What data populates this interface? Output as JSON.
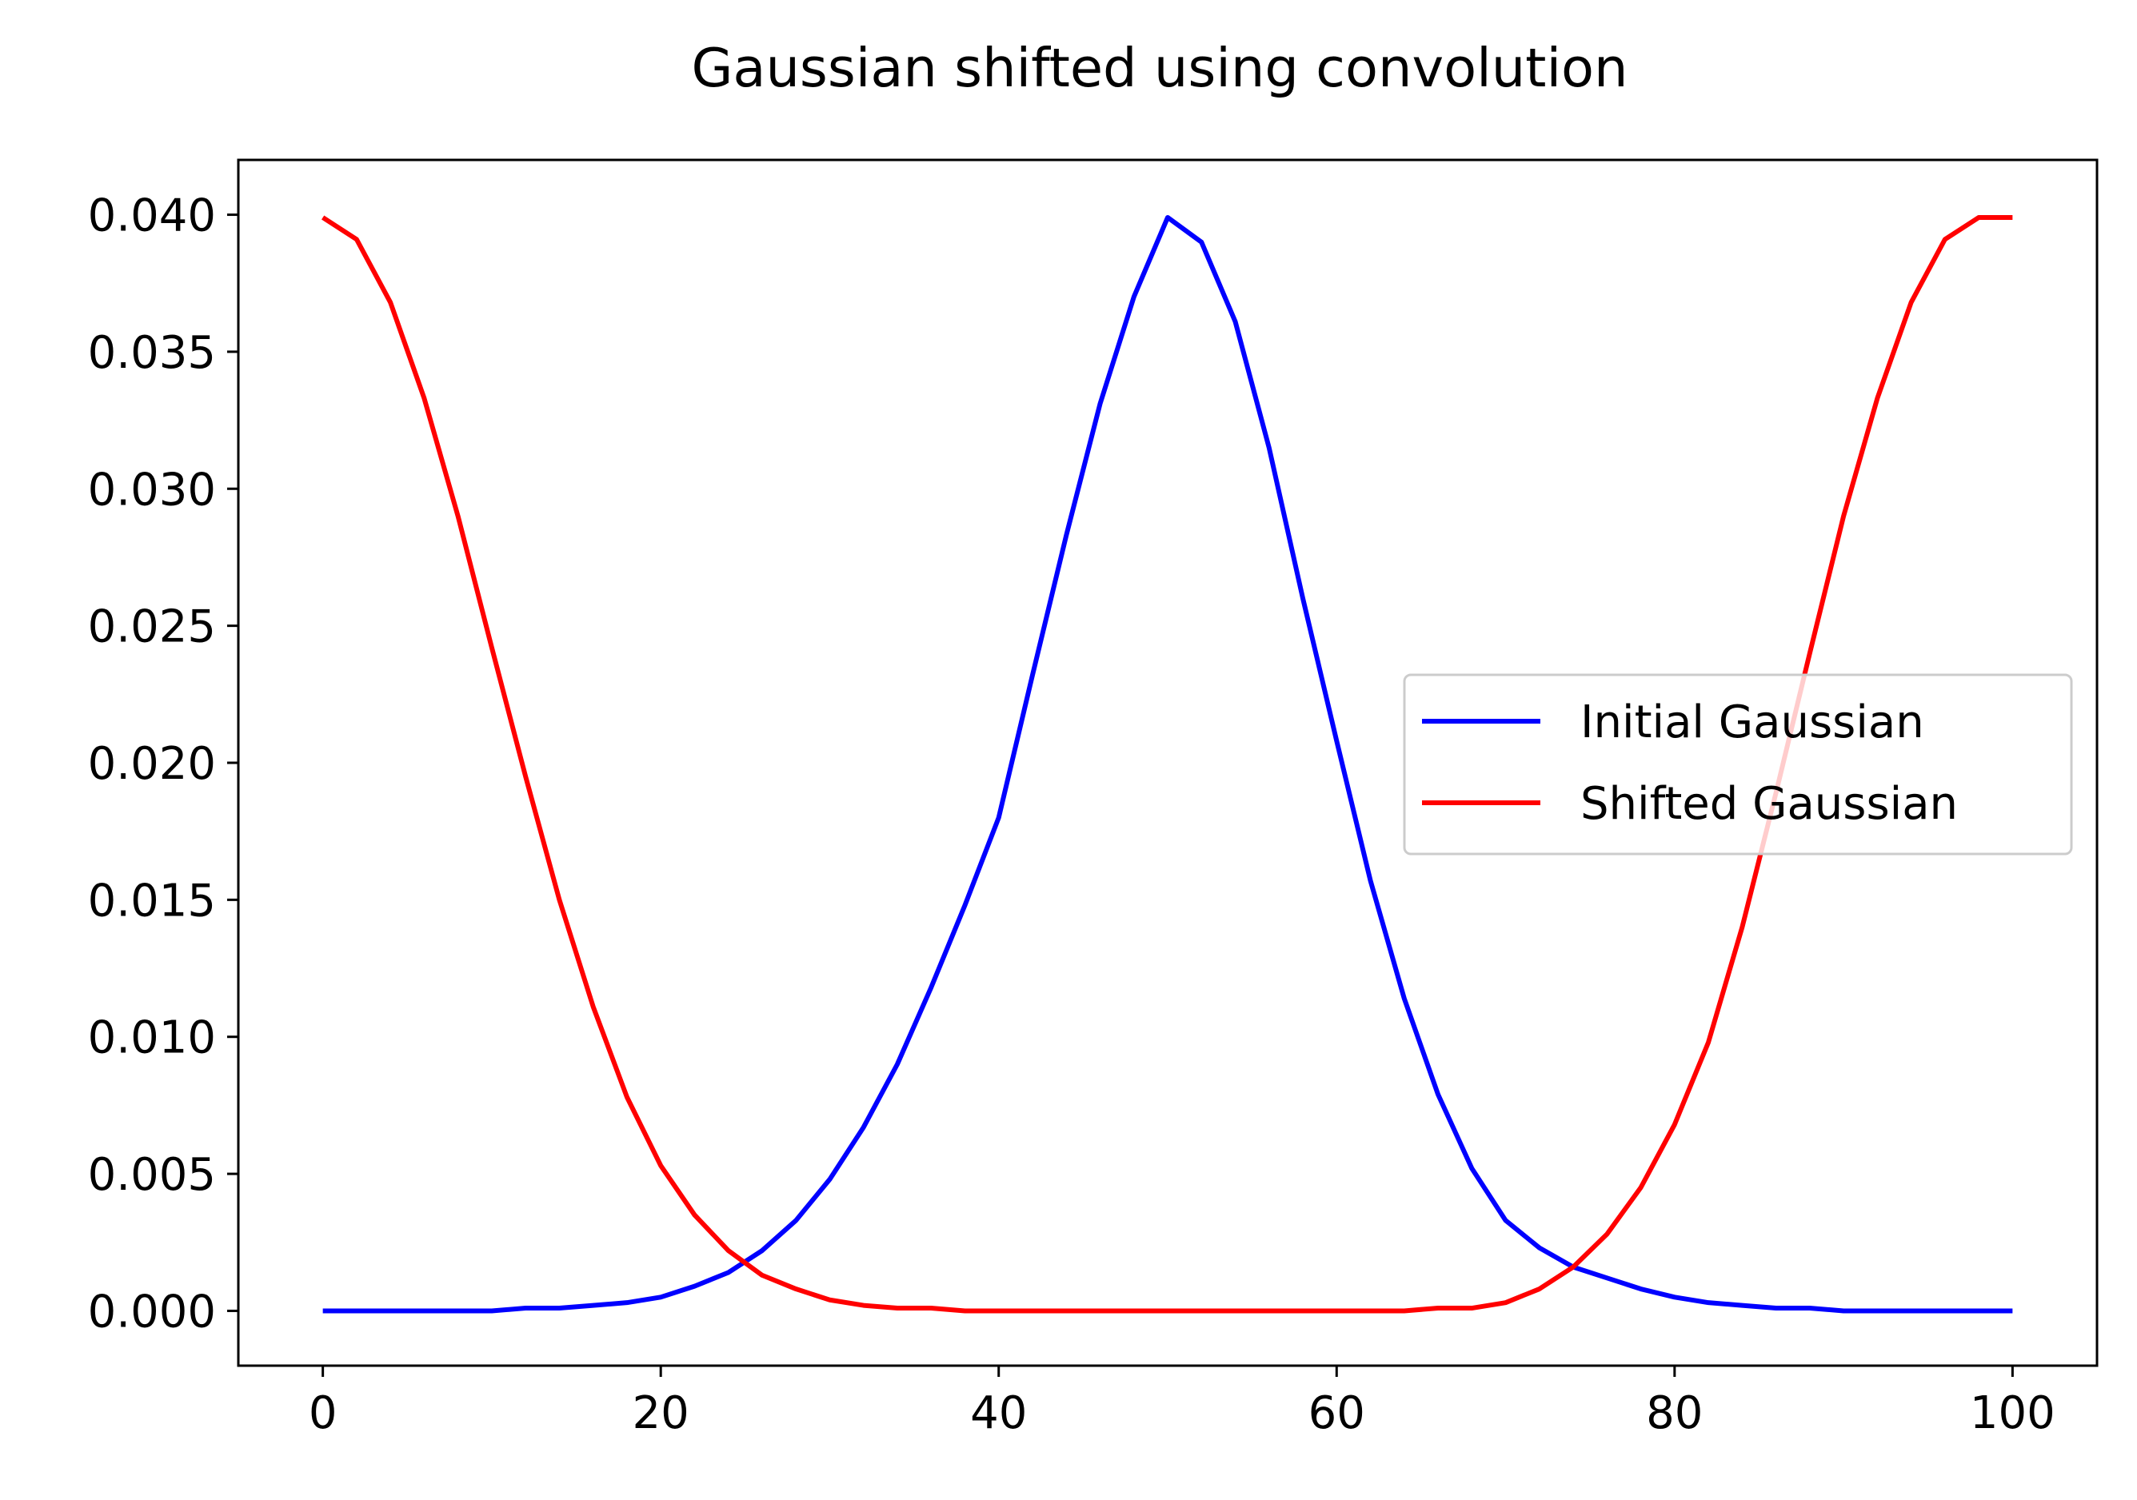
{
  "chart_data": {
    "type": "line",
    "title": "Gaussian shifted using convolution",
    "xlabel": "",
    "ylabel": "",
    "xlim": [
      -5,
      105
    ],
    "ylim": [
      -0.002,
      0.042
    ],
    "x_ticks": [
      0,
      20,
      40,
      60,
      80,
      100
    ],
    "x_tick_labels": [
      "0",
      "20",
      "40",
      "60",
      "80",
      "100"
    ],
    "y_ticks": [
      0.0,
      0.005,
      0.01,
      0.015,
      0.02,
      0.025,
      0.03,
      0.035,
      0.04
    ],
    "y_tick_labels": [
      "0.000",
      "0.005",
      "0.010",
      "0.015",
      "0.020",
      "0.025",
      "0.030",
      "0.035",
      "0.040"
    ],
    "grid": false,
    "legend_position": "center-right",
    "series": [
      {
        "name": "Initial Gaussian",
        "color": "#0000ff",
        "x": [
          0,
          2,
          4,
          6,
          8,
          10,
          12,
          14,
          16,
          18,
          20,
          22,
          24,
          26,
          28,
          30,
          32,
          34,
          36,
          38,
          40,
          42,
          44,
          46,
          48,
          50,
          52,
          54,
          56,
          58,
          60,
          62,
          64,
          66,
          68,
          70,
          72,
          74,
          76,
          78,
          80,
          82,
          84,
          86,
          88,
          90,
          92,
          94,
          96,
          98,
          100
        ],
        "values": [
          0.0,
          0.0,
          0.0,
          0.0,
          0.0,
          0.0,
          0.0001,
          0.0001,
          0.0002,
          0.0003,
          0.0005,
          0.0009,
          0.0014,
          0.0022,
          0.0033,
          0.0048,
          0.0067,
          0.009,
          0.0118,
          0.0148,
          0.018,
          0.0232,
          0.0283,
          0.0331,
          0.037,
          0.0399,
          0.039,
          0.0361,
          0.0315,
          0.026,
          0.0208,
          0.0157,
          0.0114,
          0.0079,
          0.0052,
          0.0033,
          0.0023,
          0.0016,
          0.0012,
          0.0008,
          0.0005,
          0.0003,
          0.0002,
          0.0001,
          0.0001,
          0.0,
          0.0,
          0.0,
          0.0,
          0.0,
          0.0
        ]
      },
      {
        "name": "Shifted Gaussian",
        "color": "#ff0000",
        "x": [
          0,
          2,
          4,
          6,
          8,
          10,
          12,
          14,
          16,
          18,
          20,
          22,
          24,
          26,
          28,
          30,
          32,
          34,
          36,
          38,
          40,
          42,
          44,
          46,
          48,
          50,
          52,
          54,
          56,
          58,
          60,
          62,
          64,
          66,
          68,
          70,
          72,
          74,
          76,
          78,
          80,
          82,
          84,
          86,
          88,
          90,
          92,
          94,
          96,
          98,
          100
        ],
        "values": [
          0.0399,
          0.0391,
          0.0368,
          0.0333,
          0.029,
          0.0242,
          0.0195,
          0.015,
          0.0111,
          0.0078,
          0.0053,
          0.0035,
          0.0022,
          0.0013,
          0.0008,
          0.0004,
          0.0002,
          0.0001,
          0.0001,
          0.0,
          0.0,
          0.0,
          0.0,
          0.0,
          0.0,
          0.0,
          0.0,
          0.0,
          0.0,
          0.0,
          0.0,
          0.0,
          0.0,
          0.0001,
          0.0001,
          0.0003,
          0.0008,
          0.0016,
          0.0028,
          0.0045,
          0.0068,
          0.0098,
          0.014,
          0.0189,
          0.024,
          0.029,
          0.0333,
          0.0368,
          0.0391,
          0.0399,
          0.0399
        ]
      }
    ]
  }
}
